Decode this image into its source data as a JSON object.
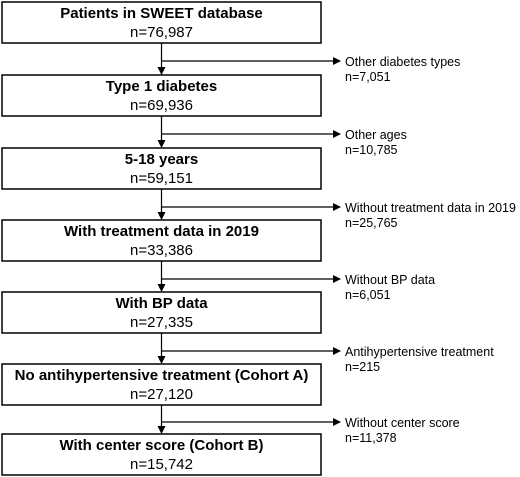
{
  "boxes": [
    {
      "title": "Patients in SWEET database",
      "count": "n=76,987"
    },
    {
      "title": "Type 1 diabetes",
      "count": "n=69,936"
    },
    {
      "title": "5-18 years",
      "count": "n=59,151"
    },
    {
      "title": "With treatment data in 2019",
      "count": "n=33,386"
    },
    {
      "title": "With BP data",
      "count": "n=27,335"
    },
    {
      "title": "No antihypertensive treatment (Cohort A)",
      "count": "n=27,120"
    },
    {
      "title": "With center score (Cohort B)",
      "count": "n=15,742"
    }
  ],
  "exclusions": [
    {
      "label": "Other diabetes types",
      "count": "n=7,051"
    },
    {
      "label": "Other ages",
      "count": "n=10,785"
    },
    {
      "label": "Without treatment data in 2019",
      "count": "n=25,765"
    },
    {
      "label": "Without BP data",
      "count": "n=6,051"
    },
    {
      "label": "Antihypertensive treatment",
      "count": "n=215"
    },
    {
      "label": "Without center score",
      "count": "n=11,378"
    }
  ]
}
